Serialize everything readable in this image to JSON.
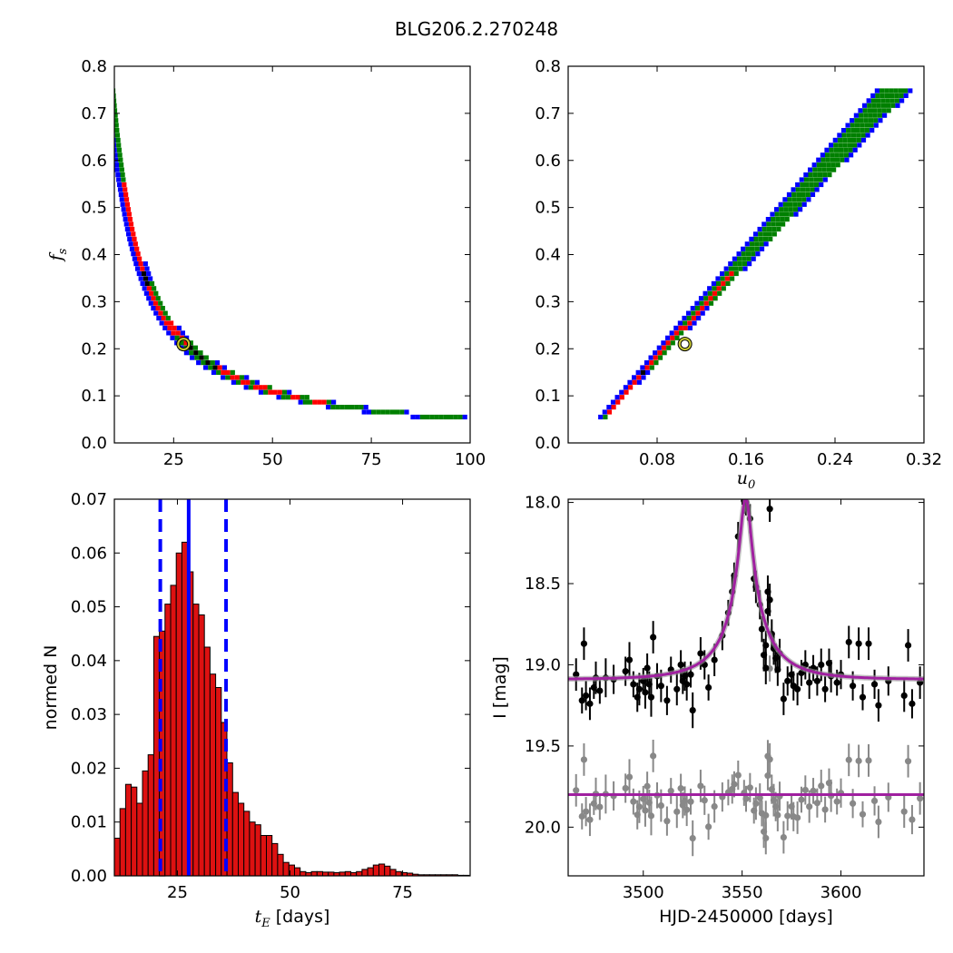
{
  "title": "BLG206.2.270248",
  "colors": {
    "blue": "#0000ff",
    "green": "#008000",
    "red": "#ff0000",
    "black": "#000000",
    "bar_fill": "#dd1111",
    "model": "#a020a0",
    "marker_ring": "#cccc33",
    "grey_points": "#888888"
  },
  "chart_data": [
    {
      "id": "fs-vs-tE",
      "type": "heatmap",
      "xlim": [
        10,
        100
      ],
      "ylim": [
        0,
        0.8
      ],
      "xticks": [
        25,
        50,
        75,
        100
      ],
      "xtick_labels": [
        "25",
        "50",
        "75",
        "100"
      ],
      "yticks": [
        0,
        0.1,
        0.2,
        0.3,
        0.4,
        0.5,
        0.6,
        0.7,
        0.8
      ],
      "ytick_labels": [
        "0.0",
        "0.1",
        "0.2",
        "0.3",
        "0.4",
        "0.5",
        "0.6",
        "0.7",
        "0.8"
      ],
      "xlabel": "",
      "ylabel": "f",
      "ylabel_sub": "s",
      "best_fit": {
        "x": 27.5,
        "y": 0.21
      }
    },
    {
      "id": "fs-vs-u0",
      "type": "heatmap",
      "xlim": [
        0.0,
        0.32
      ],
      "ylim": [
        0,
        0.8
      ],
      "xticks": [
        0.08,
        0.16,
        0.24,
        0.32
      ],
      "xtick_labels": [
        "0.08",
        "0.16",
        "0.24",
        "0.32"
      ],
      "yticks": [
        0,
        0.1,
        0.2,
        0.3,
        0.4,
        0.5,
        0.6,
        0.7,
        0.8
      ],
      "ytick_labels": [
        "0.0",
        "0.1",
        "0.2",
        "0.3",
        "0.4",
        "0.5",
        "0.6",
        "0.7",
        "0.8"
      ],
      "xlabel": "u",
      "xlabel_sub": "0",
      "ylabel": "",
      "best_fit": {
        "x": 0.105,
        "y": 0.21
      }
    },
    {
      "id": "tE-histogram",
      "type": "bar",
      "xlim": [
        11,
        90
      ],
      "ylim": [
        0,
        0.07
      ],
      "xticks": [
        25,
        50,
        75
      ],
      "xtick_labels": [
        "25",
        "50",
        "75"
      ],
      "yticks": [
        0,
        0.01,
        0.02,
        0.03,
        0.04,
        0.05,
        0.06,
        0.07
      ],
      "ytick_labels": [
        "0.00",
        "0.01",
        "0.02",
        "0.03",
        "0.04",
        "0.05",
        "0.06",
        "0.07"
      ],
      "xlabel": "t",
      "xlabel_sub": "E",
      "xlabel_suffix": " [days]",
      "ylabel": "normed N",
      "bin_start": 11,
      "bin_width": 1.25,
      "values": [
        0.007,
        0.0125,
        0.017,
        0.0165,
        0.0135,
        0.0195,
        0.0225,
        0.0445,
        0.0455,
        0.0505,
        0.054,
        0.06,
        0.062,
        0.0565,
        0.0505,
        0.0485,
        0.0425,
        0.0375,
        0.035,
        0.0285,
        0.021,
        0.0155,
        0.0135,
        0.012,
        0.01,
        0.0095,
        0.0075,
        0.0075,
        0.006,
        0.004,
        0.0025,
        0.002,
        0.0015,
        0.0008,
        0.0006,
        0.0008,
        0.0008,
        0.0007,
        0.0007,
        0.0006,
        0.0007,
        0.0008,
        0.0006,
        0.0008,
        0.0012,
        0.0015,
        0.002,
        0.0022,
        0.0018,
        0.0012,
        0.0008,
        0.0006,
        0.0005,
        0.0003,
        0.0002,
        0.0002,
        0.0002,
        0.0002,
        0.0002,
        0.0002,
        0.0002,
        0.0001,
        0.0001
      ],
      "median": 27.5,
      "lower": 21.2,
      "upper": 35.8
    },
    {
      "id": "lightcurve",
      "type": "scatter",
      "xlim": [
        3462,
        3642
      ],
      "ylim": [
        20.3,
        17.98
      ],
      "xticks": [
        3500,
        3550,
        3600
      ],
      "xtick_labels": [
        "3500",
        "3550",
        "3600"
      ],
      "yticks": [
        18.0,
        18.5,
        19.0,
        19.5,
        20.0
      ],
      "ytick_labels": [
        "18.0",
        "18.5",
        "19.0",
        "19.5",
        "20.0"
      ],
      "xlabel": "HJD-2450000 [days]",
      "ylabel": "I [mag]",
      "model": {
        "t0": 3551.8,
        "tE": 27.5,
        "u0": 0.105,
        "fs": 0.21,
        "I0": 19.09
      },
      "residual_offset": 19.8,
      "points": [
        [
          3466,
          19.06,
          0.1
        ],
        [
          3469,
          19.22,
          0.08
        ],
        [
          3470,
          18.87,
          0.1
        ],
        [
          3471,
          19.19,
          0.09
        ],
        [
          3473,
          19.24,
          0.1
        ],
        [
          3475,
          19.14,
          0.07
        ],
        [
          3476,
          19.08,
          0.1
        ],
        [
          3478,
          19.16,
          0.08
        ],
        [
          3481,
          19.08,
          0.12
        ],
        [
          3485,
          19.09,
          0.09
        ],
        [
          3491,
          19.04,
          0.09
        ],
        [
          3493,
          18.97,
          0.11
        ],
        [
          3495,
          19.12,
          0.08
        ],
        [
          3497,
          19.2,
          0.09
        ],
        [
          3498,
          19.15,
          0.1
        ],
        [
          3500,
          19.1,
          0.08
        ],
        [
          3501,
          19.17,
          0.1
        ],
        [
          3502,
          19.02,
          0.09
        ],
        [
          3503,
          19.12,
          0.08
        ],
        [
          3504,
          19.2,
          0.12
        ],
        [
          3505,
          18.83,
          0.1
        ],
        [
          3507,
          19.07,
          0.08
        ],
        [
          3509,
          19.13,
          0.1
        ],
        [
          3512,
          19.22,
          0.09
        ],
        [
          3514,
          19.03,
          0.08
        ],
        [
          3517,
          19.15,
          0.1
        ],
        [
          3519,
          19.0,
          0.09
        ],
        [
          3520,
          19.1,
          0.08
        ],
        [
          3521,
          19.07,
          0.09
        ],
        [
          3522,
          19.12,
          0.1
        ],
        [
          3524,
          19.06,
          0.08
        ],
        [
          3525,
          19.28,
          0.11
        ],
        [
          3529,
          18.93,
          0.1
        ],
        [
          3531,
          19.0,
          0.09
        ],
        [
          3533,
          19.14,
          0.08
        ],
        [
          3536,
          18.97,
          0.1
        ],
        [
          3540,
          18.82,
          0.09
        ],
        [
          3543,
          18.68,
          0.08
        ],
        [
          3545,
          18.55,
          0.09
        ],
        [
          3546,
          18.45,
          0.08
        ],
        [
          3548,
          18.21,
          0.09
        ],
        [
          3551,
          17.99,
          0.08
        ],
        [
          3552,
          18.0,
          0.08
        ],
        [
          3554,
          18.1,
          0.09
        ],
        [
          3556,
          18.47,
          0.08
        ],
        [
          3557,
          18.52,
          0.1
        ],
        [
          3559,
          18.63,
          0.09
        ],
        [
          3560,
          18.78,
          0.08
        ],
        [
          3561,
          18.94,
          0.1
        ],
        [
          3562,
          18.88,
          0.09
        ],
        [
          3562,
          19.02,
          0.1
        ],
        [
          3563,
          18.55,
          0.1
        ],
        [
          3563,
          18.67,
          0.09
        ],
        [
          3564,
          18.04,
          0.08
        ],
        [
          3564,
          18.6,
          0.1
        ],
        [
          3565,
          18.81,
          0.09
        ],
        [
          3566,
          18.9,
          0.1
        ],
        [
          3567,
          18.96,
          0.09
        ],
        [
          3568,
          19.03,
          0.1
        ],
        [
          3569,
          18.93,
          0.09
        ],
        [
          3571,
          19.21,
          0.1
        ],
        [
          3573,
          19.1,
          0.09
        ],
        [
          3575,
          19.06,
          0.08
        ],
        [
          3576,
          19.13,
          0.09
        ],
        [
          3578,
          19.15,
          0.1
        ],
        [
          3580,
          19.05,
          0.08
        ],
        [
          3582,
          19.0,
          0.09
        ],
        [
          3584,
          19.11,
          0.1
        ],
        [
          3586,
          19.02,
          0.08
        ],
        [
          3588,
          19.1,
          0.09
        ],
        [
          3590,
          19.0,
          0.1
        ],
        [
          3592,
          19.15,
          0.08
        ],
        [
          3594,
          18.99,
          0.09
        ],
        [
          3595,
          19.07,
          0.1
        ],
        [
          3598,
          19.11,
          0.08
        ],
        [
          3600,
          19.06,
          0.09
        ],
        [
          3604,
          18.86,
          0.1
        ],
        [
          3606,
          19.13,
          0.09
        ],
        [
          3609,
          18.87,
          0.1
        ],
        [
          3611,
          19.2,
          0.08
        ],
        [
          3614,
          18.87,
          0.1
        ],
        [
          3617,
          19.12,
          0.09
        ],
        [
          3619,
          19.25,
          0.1
        ],
        [
          3624,
          19.1,
          0.09
        ],
        [
          3632,
          19.19,
          0.1
        ],
        [
          3634,
          18.88,
          0.1
        ],
        [
          3636,
          19.24,
          0.09
        ],
        [
          3640,
          19.11,
          0.1
        ]
      ]
    }
  ]
}
